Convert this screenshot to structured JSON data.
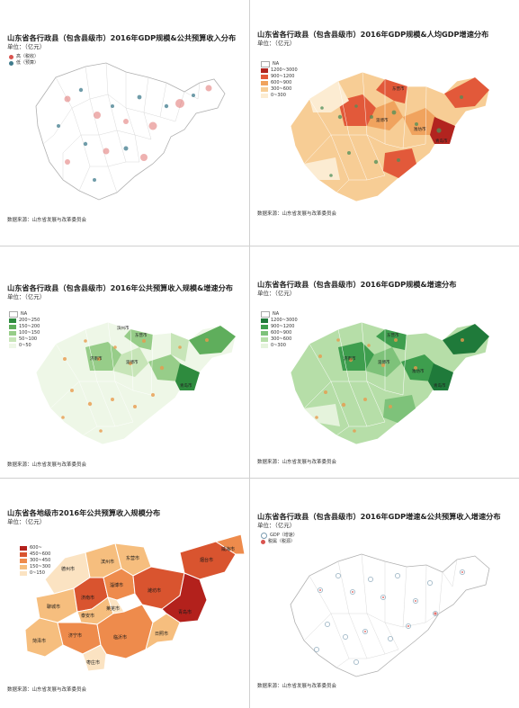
{
  "panels": [
    {
      "id": "p1",
      "title": "山东省各行政县（包含县级市）2016年GDP规模&公共预算收入分布",
      "unit": "单位：（亿元）",
      "source": "数据来源：山东省发展与改革委员会",
      "legend": [
        {
          "label": "高（税收）",
          "color": "#d9534f",
          "kind": "dot"
        },
        {
          "label": "低（预算）",
          "color": "#3f7b8c",
          "kind": "dot"
        }
      ]
    },
    {
      "id": "p2",
      "title": "山东省各行政县（包含县级市）2016年GDP规模&人均GDP增速分布",
      "unit": "单位：（亿元）",
      "source": "数据来源：山东省发展与改革委员会",
      "legend": [
        {
          "label": "NA",
          "color": "#ffffff",
          "kind": "sw"
        },
        {
          "label": "1200~3000",
          "color": "#b2241f",
          "kind": "sw"
        },
        {
          "label": "900~1200",
          "color": "#e2593a",
          "kind": "sw"
        },
        {
          "label": "600~900",
          "color": "#f0a35e",
          "kind": "sw"
        },
        {
          "label": "300~600",
          "color": "#f7cd95",
          "kind": "sw"
        },
        {
          "label": "0~300",
          "color": "#fcecd2",
          "kind": "sw"
        }
      ]
    },
    {
      "id": "p3",
      "title": "山东省各行政县（包含县级市）2016年公共预算收入规模&增速分布",
      "unit": "单位：（亿元）",
      "source": "数据来源：山东省发展与改革委员会",
      "legend": [
        {
          "label": "NA",
          "color": "#ffffff",
          "kind": "sw"
        },
        {
          "label": "200~250",
          "color": "#2e8b3e",
          "kind": "sw"
        },
        {
          "label": "150~200",
          "color": "#5fae5c",
          "kind": "sw"
        },
        {
          "label": "100~150",
          "color": "#97cd89",
          "kind": "sw"
        },
        {
          "label": "50~100",
          "color": "#c7e5b8",
          "kind": "sw"
        },
        {
          "label": "0~50",
          "color": "#eef7e7",
          "kind": "sw"
        }
      ]
    },
    {
      "id": "p4",
      "title": "山东省各行政县（包含县级市）2016年GDP规模&增速分布",
      "unit": "单位：（亿元）",
      "source": "数据来源：山东省发展与改革委员会",
      "legend": [
        {
          "label": "NA",
          "color": "#ffffff",
          "kind": "sw"
        },
        {
          "label": "1200~3000",
          "color": "#1f7a3a",
          "kind": "sw"
        },
        {
          "label": "900~1200",
          "color": "#3e9e4e",
          "kind": "sw"
        },
        {
          "label": "600~900",
          "color": "#7ec27a",
          "kind": "sw"
        },
        {
          "label": "300~600",
          "color": "#b6dea8",
          "kind": "sw"
        },
        {
          "label": "0~300",
          "color": "#e5f3dc",
          "kind": "sw"
        }
      ]
    },
    {
      "id": "p5",
      "title": "山东省各地级市2016年公共预算收入规模分布",
      "unit": "单位：（亿元）",
      "source": "数据来源：山东省发展与改革委员会",
      "legend": [
        {
          "label": "600~",
          "color": "#b3211c",
          "kind": "sw"
        },
        {
          "label": "450~600",
          "color": "#d9542f",
          "kind": "sw"
        },
        {
          "label": "300~450",
          "color": "#ee8b4c",
          "kind": "sw"
        },
        {
          "label": "150~300",
          "color": "#f6be7e",
          "kind": "sw"
        },
        {
          "label": "0~150",
          "color": "#fbe3c2",
          "kind": "sw"
        }
      ],
      "cities": [
        {
          "name": "德州市",
          "fill": "#fbe3c2"
        },
        {
          "name": "滨州市",
          "fill": "#f6be7e"
        },
        {
          "name": "东营市",
          "fill": "#f6be7e"
        },
        {
          "name": "烟台市",
          "fill": "#d9542f"
        },
        {
          "name": "威海市",
          "fill": "#ee8b4c"
        },
        {
          "name": "聊城市",
          "fill": "#f6be7e"
        },
        {
          "name": "济南市",
          "fill": "#d9542f"
        },
        {
          "name": "淄博市",
          "fill": "#ee8b4c"
        },
        {
          "name": "潍坊市",
          "fill": "#d9542f"
        },
        {
          "name": "青岛市",
          "fill": "#b3211c"
        },
        {
          "name": "泰安市",
          "fill": "#f6be7e"
        },
        {
          "name": "莱芜市",
          "fill": "#fbe3c2"
        },
        {
          "name": "菏泽市",
          "fill": "#f6be7e"
        },
        {
          "name": "济宁市",
          "fill": "#ee8b4c"
        },
        {
          "name": "临沂市",
          "fill": "#ee8b4c"
        },
        {
          "name": "日照市",
          "fill": "#f6be7e"
        },
        {
          "name": "枣庄市",
          "fill": "#fbe3c2"
        }
      ]
    },
    {
      "id": "p6",
      "title": "山东省各行政县（包含县级市）2016年GDP增速&公共预算收入增速分布",
      "unit": "单位：（亿元）",
      "source": "数据来源：山东省发展与改革委员会",
      "legend": [
        {
          "label": "GDP（增速）",
          "color": "#7a9bb0",
          "kind": "dot"
        },
        {
          "label": "税属（税源）",
          "color": "#d9534f",
          "kind": "dot"
        }
      ]
    }
  ],
  "map_labels_p2": [
    "东营市",
    "淄博市",
    "潍坊市",
    "青岛市"
  ],
  "map_labels_p3": [
    "滨州市",
    "东营市",
    "淄博市",
    "济南市",
    "青岛市"
  ],
  "map_labels_p4": [
    "东营市",
    "淄博市",
    "济南市",
    "潍坊市",
    "青岛市"
  ]
}
